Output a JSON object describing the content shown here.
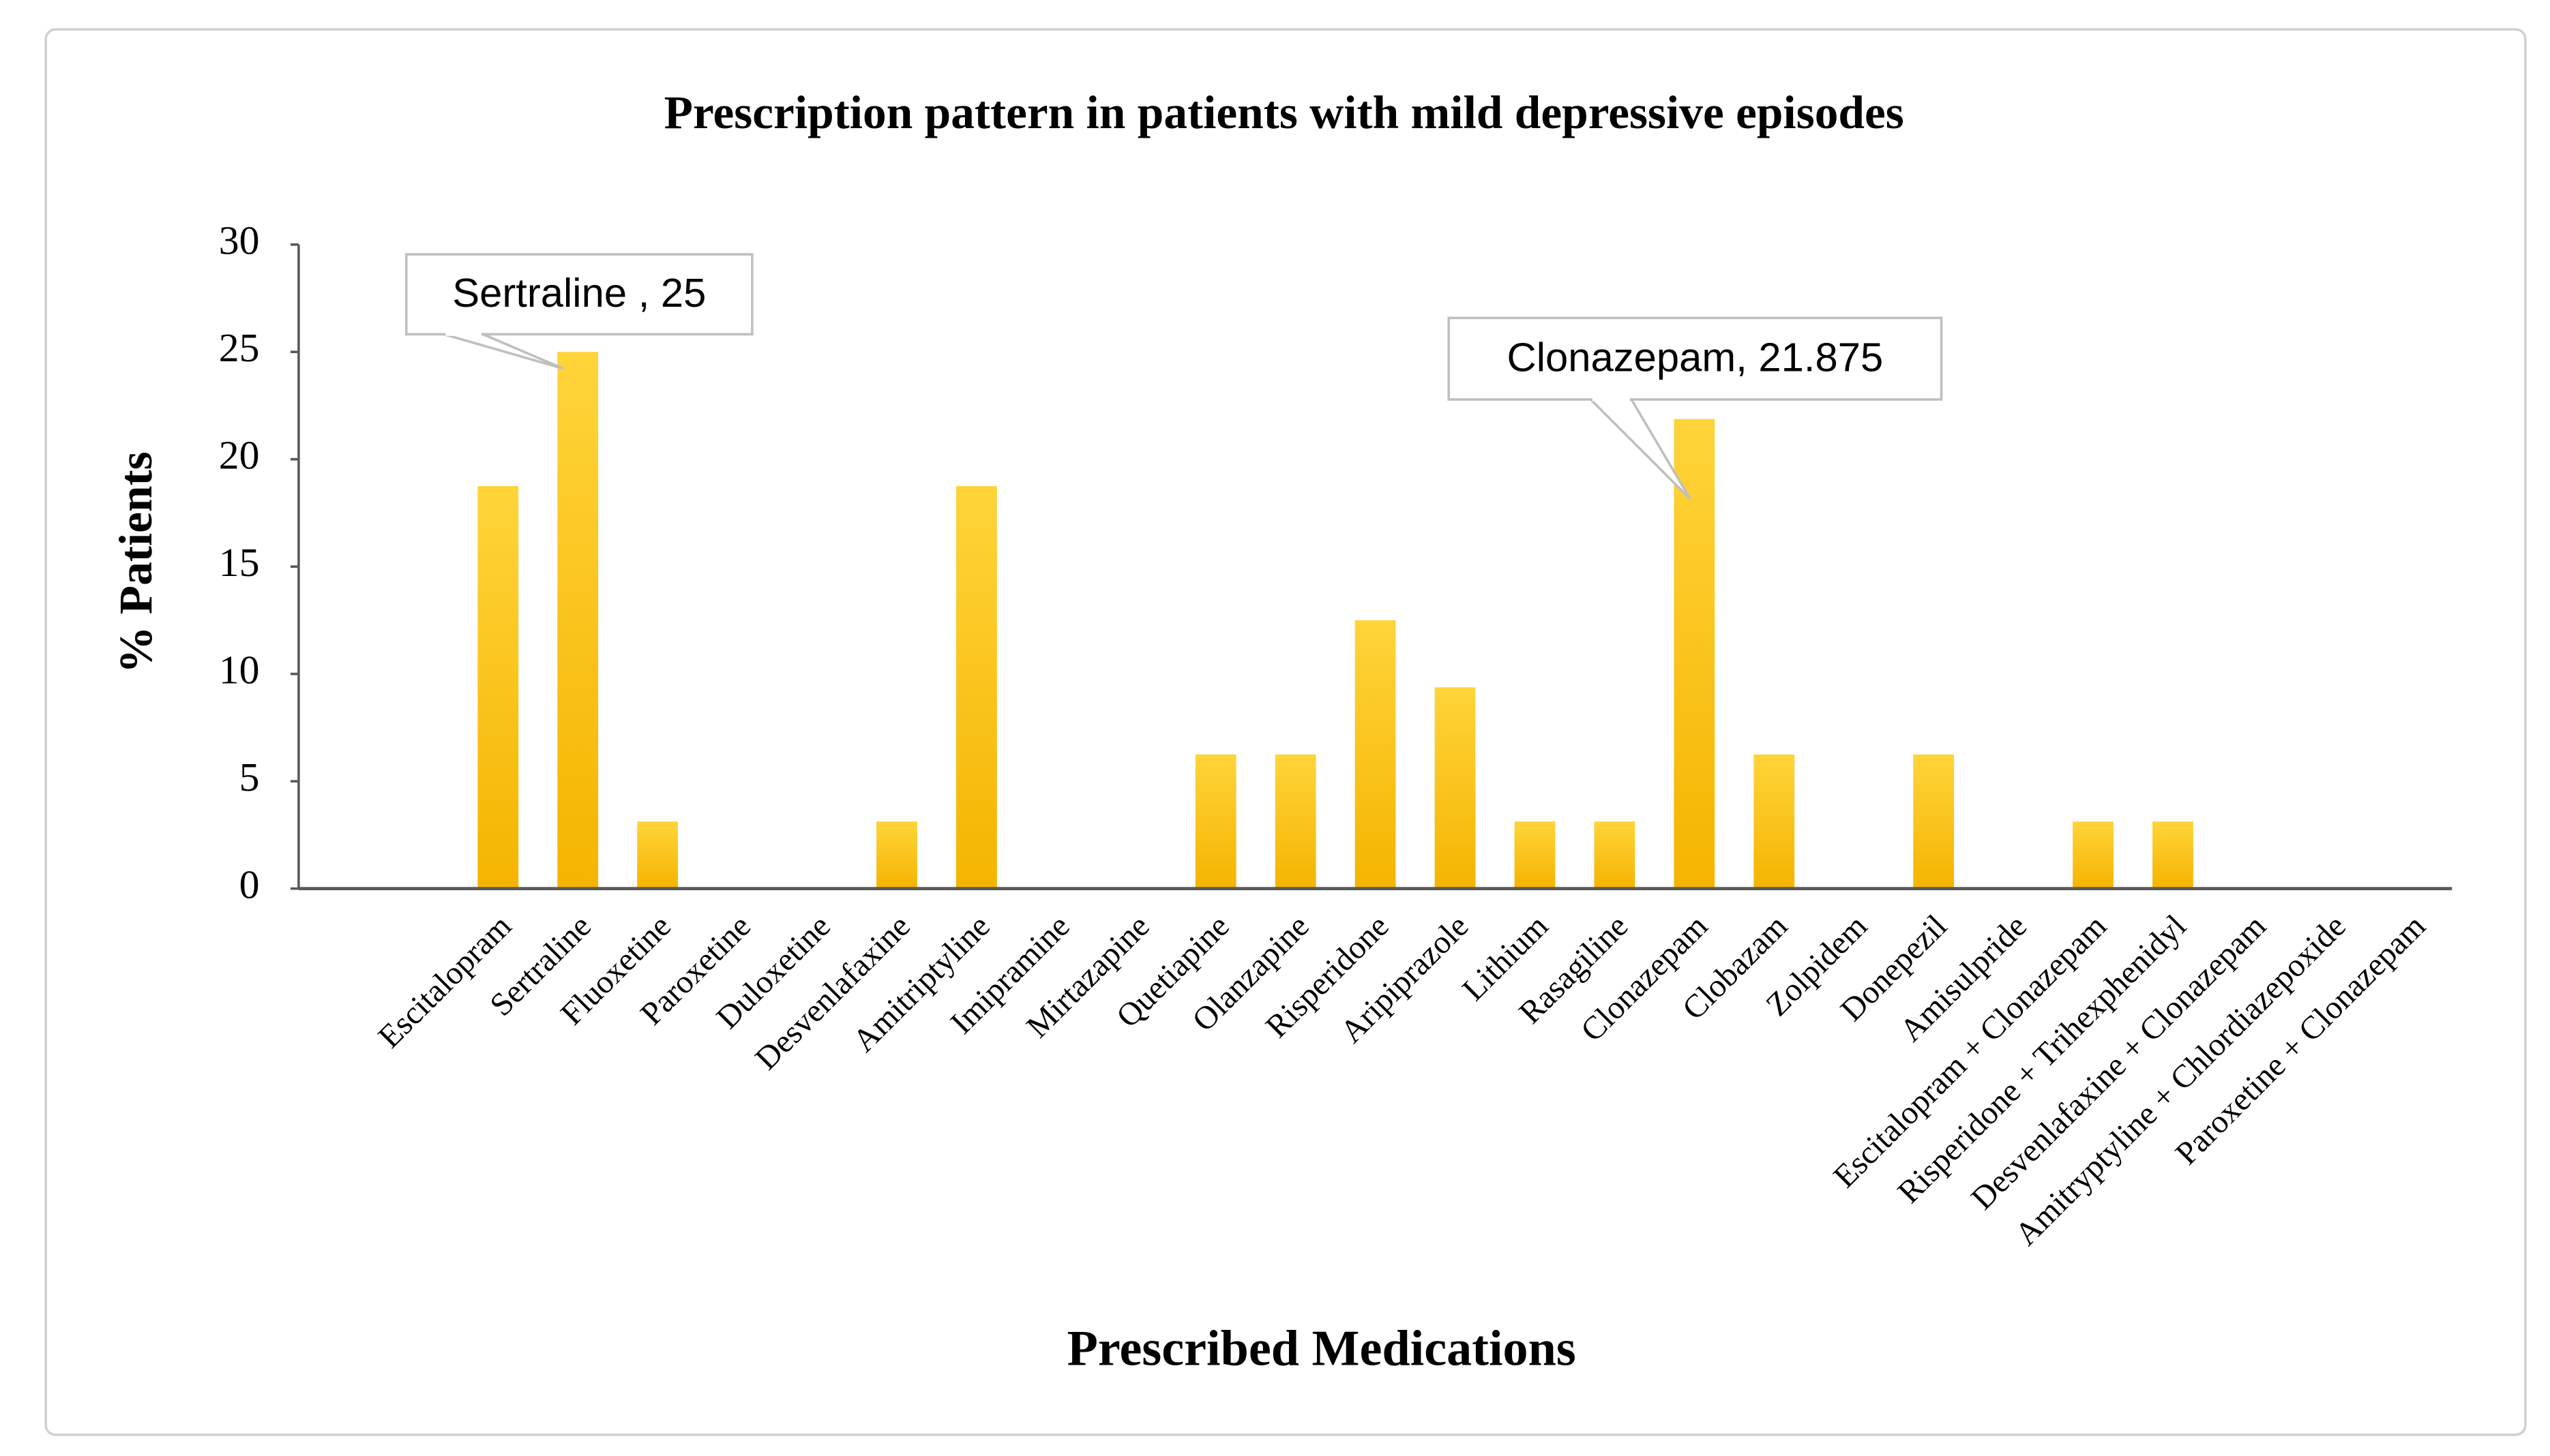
{
  "chart_data": {
    "type": "bar",
    "title": "Prescription pattern in patients with  mild depressive episodes",
    "x_label": "Prescribed Medications",
    "y_label": "% Patients",
    "categories": [
      null,
      null,
      "Escitalopram",
      "Sertraline",
      "Fluoxetine",
      "Paroxetine",
      "Duloxetine",
      "Desvenlafaxine",
      "Amitriptyline",
      "Imipramine",
      "Mirtazapine",
      "Quetiapine",
      "Olanzapine",
      "Risperidone",
      "Aripiprazole",
      "Lithium",
      "Rasagiline",
      "Clonazepam",
      "Clobazam",
      "Zolpidem",
      "Donepezil",
      "Amisulpride",
      "Escitalopram + Clonazepam",
      "Risperidone + Trihexphenidyl",
      "Desvenlafaxine + Clonazepam",
      "Amitryptyline + Chlordiazepoxide",
      "Paroxetine + Clonazepam"
    ],
    "values": [
      null,
      null,
      18.75,
      25,
      3.125,
      0,
      0,
      3.125,
      18.75,
      0,
      0,
      6.25,
      6.25,
      12.5,
      9.375,
      3.125,
      3.125,
      21.875,
      6.25,
      0,
      6.25,
      0,
      3.125,
      3.125,
      0,
      0,
      0
    ],
    "color": "#ffc000",
    "ylim": [
      0,
      30
    ],
    "yticks": [
      0,
      5,
      10,
      15,
      20,
      25,
      30
    ],
    "grid": false,
    "annotations": [
      "Sertraline , 25",
      "Clonazepam, 21.875"
    ]
  }
}
